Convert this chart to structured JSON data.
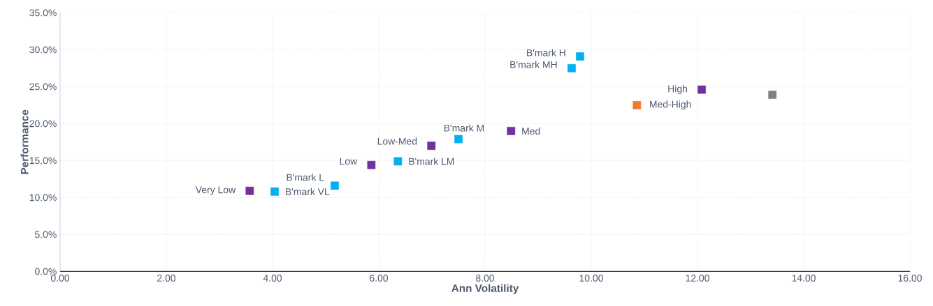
{
  "chart_data": {
    "type": "scatter",
    "xlabel": "Ann Volatility",
    "ylabel": "Performance",
    "x": [
      3.57,
      4.04,
      5.17,
      5.86,
      6.36,
      6.99,
      7.5,
      8.49,
      9.63,
      9.79,
      10.86,
      12.08,
      13.41
    ],
    "values": [
      10.9,
      10.8,
      11.6,
      14.4,
      14.9,
      17.0,
      17.9,
      19.0,
      27.5,
      29.1,
      22.5,
      24.6,
      23.9
    ],
    "colors": [
      "#7030a0",
      "#00b0f0",
      "#00b0f0",
      "#7030a0",
      "#00b0f0",
      "#7030a0",
      "#00b0f0",
      "#7030a0",
      "#00b0f0",
      "#00b0f0",
      "#ed7d31",
      "#7030a0",
      "#808080"
    ],
    "marker": "square",
    "grid": true,
    "xlim": [
      0,
      16
    ],
    "ylim": [
      0,
      35
    ],
    "xticks": [
      {
        "value": 0,
        "label": "0.00"
      },
      {
        "value": 2,
        "label": "2.00"
      },
      {
        "value": 4,
        "label": "4.00"
      },
      {
        "value": 6,
        "label": "6.00"
      },
      {
        "value": 8,
        "label": "8.00"
      },
      {
        "value": 10,
        "label": "10.00"
      },
      {
        "value": 12,
        "label": "12.00"
      },
      {
        "value": 14,
        "label": "14.00"
      },
      {
        "value": 16,
        "label": "16.00"
      }
    ],
    "yticks": [
      {
        "value": 0,
        "label": "0.0%"
      },
      {
        "value": 5,
        "label": "5.0%"
      },
      {
        "value": 10,
        "label": "10.0%"
      },
      {
        "value": 15,
        "label": "15.0%"
      },
      {
        "value": 20,
        "label": "20.0%"
      },
      {
        "value": 25,
        "label": "25.0%"
      },
      {
        "value": 30,
        "label": "30.0%"
      },
      {
        "value": 35,
        "label": "35.0%"
      }
    ],
    "annotations": [
      {
        "text": "Very Low",
        "x": 3.57,
        "y": 10.9
      },
      {
        "text": "B'mark VL",
        "x": 4.04,
        "y": 10.8
      },
      {
        "text": "B'mark L",
        "x": 5.17,
        "y": 11.6
      },
      {
        "text": "Low",
        "x": 5.86,
        "y": 14.4
      },
      {
        "text": "B'mark LM",
        "x": 6.36,
        "y": 14.9
      },
      {
        "text": "Low-Med",
        "x": 6.99,
        "y": 17.0
      },
      {
        "text": "B'mark M",
        "x": 7.5,
        "y": 17.9
      },
      {
        "text": "Med",
        "x": 8.49,
        "y": 19.0
      },
      {
        "text": "B'mark MH",
        "x": 9.63,
        "y": 27.5
      },
      {
        "text": "B'mark H",
        "x": 9.79,
        "y": 29.1
      },
      {
        "text": "Med-High",
        "x": 10.86,
        "y": 22.5
      },
      {
        "text": "High",
        "x": 12.08,
        "y": 24.6
      }
    ]
  }
}
